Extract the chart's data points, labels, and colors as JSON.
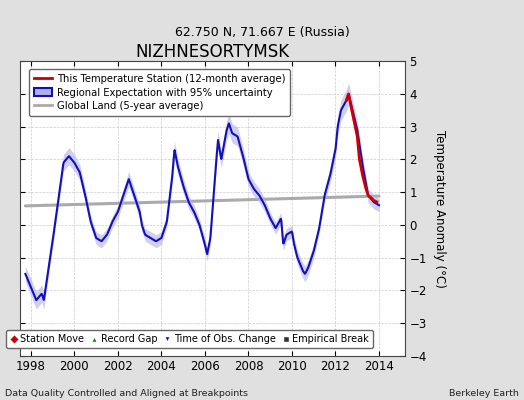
{
  "title": "NIZHNESORTYMSK",
  "subtitle": "62.750 N, 71.667 E (Russia)",
  "ylabel": "Temperature Anomaly (°C)",
  "footer_left": "Data Quality Controlled and Aligned at Breakpoints",
  "footer_right": "Berkeley Earth",
  "xlim": [
    1997.5,
    2015.2
  ],
  "ylim": [
    -4,
    5
  ],
  "yticks": [
    -4,
    -3,
    -2,
    -1,
    0,
    1,
    2,
    3,
    4,
    5
  ],
  "xticks": [
    1998,
    2000,
    2002,
    2004,
    2006,
    2008,
    2010,
    2012,
    2014
  ],
  "bg_color": "#e0e0e0",
  "plot_bg_color": "#ffffff",
  "blue_line_color": "#1111bb",
  "blue_fill_color": "#b0b0ee",
  "red_line_color": "#cc0000",
  "gray_line_color": "#aaaaaa",
  "grid_color": "#cccccc",
  "legend1_items": [
    {
      "label": "This Temperature Station (12-month average)",
      "color": "#cc0000"
    },
    {
      "label": "Regional Expectation with 95% uncertainty",
      "color": "#1111bb"
    },
    {
      "label": "Global Land (5-year average)",
      "color": "#aaaaaa"
    }
  ],
  "legend2_items": [
    {
      "label": "Station Move",
      "marker": "D",
      "color": "#cc0000"
    },
    {
      "label": "Record Gap",
      "marker": "^",
      "color": "#008800"
    },
    {
      "label": "Time of Obs. Change",
      "marker": "v",
      "color": "#1111bb"
    },
    {
      "label": "Empirical Break",
      "marker": "s",
      "color": "#333333"
    }
  ],
  "keypoints_t": [
    1997.75,
    1998.0,
    1998.25,
    1998.5,
    1998.6,
    1998.75,
    1999.0,
    1999.25,
    1999.5,
    1999.75,
    2000.0,
    2000.25,
    2000.5,
    2000.75,
    2001.0,
    2001.25,
    2001.5,
    2001.75,
    2002.0,
    2002.25,
    2002.5,
    2002.75,
    2003.0,
    2003.1,
    2003.25,
    2003.5,
    2003.75,
    2004.0,
    2004.25,
    2004.5,
    2004.6,
    2004.75,
    2005.0,
    2005.25,
    2005.5,
    2005.75,
    2006.0,
    2006.1,
    2006.25,
    2006.5,
    2006.6,
    2006.75,
    2007.0,
    2007.1,
    2007.25,
    2007.5,
    2007.75,
    2008.0,
    2008.25,
    2008.5,
    2008.75,
    2009.0,
    2009.25,
    2009.5,
    2009.6,
    2009.75,
    2010.0,
    2010.1,
    2010.25,
    2010.5,
    2010.6,
    2010.75,
    2011.0,
    2011.25,
    2011.5,
    2011.75,
    2012.0,
    2012.1,
    2012.25,
    2012.5,
    2012.6,
    2012.75,
    2013.0,
    2013.25,
    2013.5,
    2013.75,
    2014.0
  ],
  "keypoints_v": [
    -1.5,
    -1.9,
    -2.3,
    -2.1,
    -2.3,
    -1.6,
    -0.5,
    0.7,
    1.9,
    2.1,
    1.9,
    1.6,
    0.9,
    0.1,
    -0.4,
    -0.5,
    -0.3,
    0.1,
    0.4,
    0.9,
    1.4,
    0.9,
    0.4,
    0.0,
    -0.3,
    -0.4,
    -0.5,
    -0.4,
    0.1,
    1.5,
    2.3,
    1.8,
    1.2,
    0.7,
    0.4,
    0.0,
    -0.6,
    -0.9,
    -0.4,
    1.8,
    2.6,
    2.0,
    2.9,
    3.1,
    2.8,
    2.7,
    2.1,
    1.4,
    1.1,
    0.9,
    0.6,
    0.2,
    -0.1,
    0.2,
    -0.6,
    -0.3,
    -0.2,
    -0.6,
    -1.0,
    -1.4,
    -1.5,
    -1.3,
    -0.8,
    -0.1,
    0.9,
    1.5,
    2.3,
    3.0,
    3.5,
    3.8,
    4.0,
    3.6,
    2.9,
    1.8,
    0.9,
    0.7,
    0.6
  ],
  "red_t": [
    2012.5,
    2012.6,
    2012.75,
    2013.0,
    2013.1,
    2013.25,
    2013.4,
    2013.5,
    2013.6,
    2013.75,
    2013.9
  ],
  "red_v": [
    3.8,
    4.0,
    3.5,
    2.7,
    2.0,
    1.5,
    1.1,
    0.9,
    0.85,
    0.75,
    0.7
  ],
  "gray_t": [
    1997.75,
    2014.0
  ],
  "gray_v": [
    0.58,
    0.88
  ]
}
